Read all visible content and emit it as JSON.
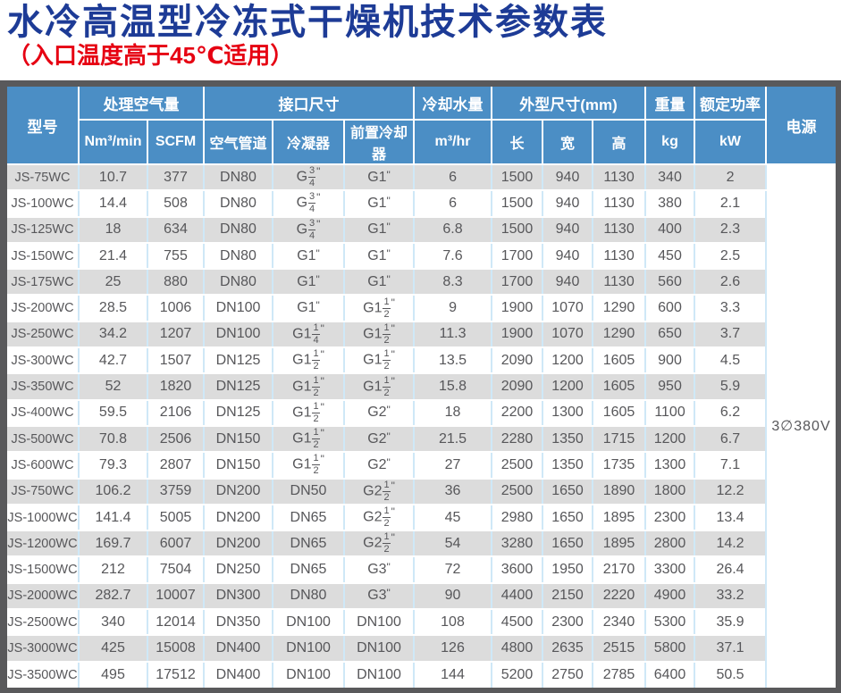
{
  "page": {
    "title": "水冷高温型冷冻式干燥机技术参数表",
    "subtitle": "（入口温度高于45℃适用）"
  },
  "colors": {
    "title_blue": "#1d3b96",
    "subtitle_red": "#e60012",
    "header_blue": "#4b8ec5",
    "stripe_gray": "#dcdcdc",
    "frame_gray": "#59595b",
    "cell_line_blue": "#cfe8f7",
    "text_gray": "#57575a"
  },
  "table": {
    "header": {
      "model": "型号",
      "air_volume_group": "处理空气量",
      "interface_group": "接口尺寸",
      "cooling_water_group": "冷却水量",
      "dimensions_group": "外型尺寸(mm)",
      "weight_group": "重量",
      "rated_power_group": "额定功率",
      "power_supply": "电源",
      "units": {
        "nm3": "Nm³/min",
        "scfm": "SCFM",
        "air_pipe": "空气管道",
        "condenser": "冷凝器",
        "precooler": "前置冷却器",
        "water": "m³/hr",
        "length": "长",
        "width": "宽",
        "height": "高",
        "kg": "kg",
        "kw": "kW"
      }
    },
    "column_keys": [
      "model",
      "nm3-min",
      "scfm",
      "air-pipe",
      "condenser",
      "precooler",
      "water-m3hr",
      "length",
      "width",
      "height",
      "weight-kg",
      "power-kw"
    ],
    "power_value": "3∅380V",
    "rows": [
      [
        "JS-75WC",
        "10.7",
        "377",
        "DN80",
        "G3/4\"",
        "G1\"",
        "6",
        "1500",
        "940",
        "1130",
        "340",
        "2"
      ],
      [
        "JS-100WC",
        "14.4",
        "508",
        "DN80",
        "G3/4\"",
        "G1\"",
        "6",
        "1500",
        "940",
        "1130",
        "380",
        "2.1"
      ],
      [
        "JS-125WC",
        "18",
        "634",
        "DN80",
        "G3/4\"",
        "G1\"",
        "6.8",
        "1500",
        "940",
        "1130",
        "400",
        "2.3"
      ],
      [
        "JS-150WC",
        "21.4",
        "755",
        "DN80",
        "G1\"",
        "G1\"",
        "7.6",
        "1700",
        "940",
        "1130",
        "450",
        "2.5"
      ],
      [
        "JS-175WC",
        "25",
        "880",
        "DN80",
        "G1\"",
        "G1\"",
        "8.3",
        "1700",
        "940",
        "1130",
        "560",
        "2.6"
      ],
      [
        "JS-200WC",
        "28.5",
        "1006",
        "DN100",
        "G1\"",
        "G1-1/2\"",
        "9",
        "1900",
        "1070",
        "1290",
        "600",
        "3.3"
      ],
      [
        "JS-250WC",
        "34.2",
        "1207",
        "DN100",
        "G1-1/4\"",
        "G1-1/2\"",
        "11.3",
        "1900",
        "1070",
        "1290",
        "650",
        "3.7"
      ],
      [
        "JS-300WC",
        "42.7",
        "1507",
        "DN125",
        "G1-1/2\"",
        "G1-1/2\"",
        "13.5",
        "2090",
        "1200",
        "1605",
        "900",
        "4.5"
      ],
      [
        "JS-350WC",
        "52",
        "1820",
        "DN125",
        "G1-1/2\"",
        "G1-1/2\"",
        "15.8",
        "2090",
        "1200",
        "1605",
        "950",
        "5.9"
      ],
      [
        "JS-400WC",
        "59.5",
        "2106",
        "DN125",
        "G1-1/2\"",
        "G2\"",
        "18",
        "2200",
        "1300",
        "1605",
        "1100",
        "6.2"
      ],
      [
        "JS-500WC",
        "70.8",
        "2506",
        "DN150",
        "G1-1/2\"",
        "G2\"",
        "21.5",
        "2280",
        "1350",
        "1715",
        "1200",
        "6.7"
      ],
      [
        "JS-600WC",
        "79.3",
        "2807",
        "DN150",
        "G1-1/2\"",
        "G2\"",
        "27",
        "2500",
        "1350",
        "1735",
        "1300",
        "7.1"
      ],
      [
        "JS-750WC",
        "106.2",
        "3759",
        "DN200",
        "DN50",
        "G2-1/2\"",
        "36",
        "2500",
        "1650",
        "1890",
        "1800",
        "12.2"
      ],
      [
        "JS-1000WC",
        "141.4",
        "5005",
        "DN200",
        "DN65",
        "G2-1/2\"",
        "45",
        "2980",
        "1650",
        "1895",
        "2300",
        "13.4"
      ],
      [
        "JS-1200WC",
        "169.7",
        "6007",
        "DN200",
        "DN65",
        "G2-1/2\"",
        "54",
        "3280",
        "1650",
        "1895",
        "2800",
        "14.2"
      ],
      [
        "JS-1500WC",
        "212",
        "7504",
        "DN250",
        "DN65",
        "G3\"",
        "72",
        "3600",
        "1950",
        "2170",
        "3300",
        "26.4"
      ],
      [
        "JS-2000WC",
        "282.7",
        "10007",
        "DN300",
        "DN80",
        "G3\"",
        "90",
        "4400",
        "2150",
        "2220",
        "4900",
        "33.2"
      ],
      [
        "JS-2500WC",
        "340",
        "12014",
        "DN350",
        "DN100",
        "DN100",
        "108",
        "4500",
        "2300",
        "2340",
        "5300",
        "35.9"
      ],
      [
        "JS-3000WC",
        "425",
        "15008",
        "DN400",
        "DN100",
        "DN100",
        "126",
        "4800",
        "2635",
        "2515",
        "5800",
        "37.1"
      ],
      [
        "JS-3500WC",
        "495",
        "17512",
        "DN400",
        "DN100",
        "DN100",
        "144",
        "5200",
        "2750",
        "2785",
        "6400",
        "50.5"
      ]
    ]
  }
}
